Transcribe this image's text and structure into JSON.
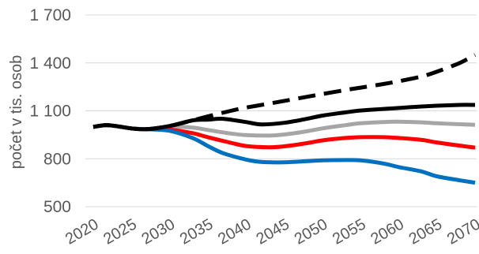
{
  "chart_data": {
    "type": "line",
    "title": "",
    "xlabel": "",
    "ylabel": "počet v tis. osob",
    "ylim": [
      500,
      1700
    ],
    "yticks": [
      500,
      800,
      1100,
      1400,
      1700
    ],
    "ytick_labels": [
      "500",
      "800",
      "1 100",
      "1 400",
      "1 700"
    ],
    "xlim": [
      2020,
      2070
    ],
    "xticks": [
      2020,
      2025,
      2030,
      2035,
      2040,
      2045,
      2050,
      2055,
      2060,
      2065,
      2070
    ],
    "xtick_labels": [
      "2020",
      "2025",
      "2030",
      "2035",
      "2040",
      "2045",
      "2050",
      "2055",
      "2060",
      "2065",
      "2070"
    ],
    "grid": "horizontal",
    "legend": "none",
    "series": [
      {
        "color": "#000000",
        "style": "dashed",
        "x": [
          2020,
          2022,
          2025,
          2027,
          2030,
          2033,
          2035,
          2038,
          2040,
          2043,
          2045,
          2048,
          2050,
          2053,
          2055,
          2058,
          2060,
          2063,
          2065,
          2068,
          2070
        ],
        "y": [
          1000,
          1010,
          990,
          985,
          1005,
          1040,
          1065,
          1100,
          1120,
          1145,
          1162,
          1188,
          1205,
          1230,
          1245,
          1268,
          1285,
          1315,
          1345,
          1400,
          1450
        ]
      },
      {
        "color": "#000000",
        "style": "solid",
        "x": [
          2020,
          2022,
          2025,
          2027,
          2030,
          2033,
          2035,
          2037,
          2040,
          2042,
          2045,
          2048,
          2050,
          2053,
          2055,
          2058,
          2060,
          2063,
          2065,
          2068,
          2070
        ],
        "y": [
          1000,
          1010,
          990,
          985,
          1005,
          1040,
          1045,
          1050,
          1030,
          1015,
          1025,
          1050,
          1070,
          1090,
          1102,
          1112,
          1118,
          1127,
          1132,
          1137,
          1137
        ]
      },
      {
        "color": "#A6A6A6",
        "style": "solid",
        "x": [
          2020,
          2022,
          2025,
          2027,
          2030,
          2033,
          2035,
          2038,
          2040,
          2043,
          2045,
          2048,
          2050,
          2053,
          2055,
          2058,
          2060,
          2063,
          2065,
          2068,
          2070
        ],
        "y": [
          1000,
          1010,
          990,
          985,
          1000,
          995,
          980,
          958,
          948,
          945,
          952,
          972,
          990,
          1010,
          1022,
          1030,
          1032,
          1028,
          1022,
          1016,
          1012
        ]
      },
      {
        "color": "#FF0000",
        "style": "solid",
        "x": [
          2020,
          2022,
          2025,
          2027,
          2030,
          2033,
          2035,
          2038,
          2040,
          2043,
          2045,
          2048,
          2050,
          2053,
          2055,
          2058,
          2060,
          2063,
          2065,
          2068,
          2070
        ],
        "y": [
          1000,
          1010,
          990,
          985,
          982,
          960,
          935,
          900,
          880,
          872,
          878,
          898,
          915,
          930,
          935,
          935,
          930,
          918,
          902,
          882,
          870
        ]
      },
      {
        "color": "#0070C0",
        "style": "solid",
        "x": [
          2020,
          2022,
          2025,
          2027,
          2030,
          2033,
          2035,
          2037,
          2040,
          2042,
          2045,
          2048,
          2050,
          2053,
          2055,
          2058,
          2060,
          2063,
          2065,
          2068,
          2070
        ],
        "y": [
          1000,
          1010,
          990,
          985,
          975,
          930,
          880,
          835,
          795,
          780,
          778,
          785,
          790,
          792,
          790,
          770,
          748,
          720,
          690,
          665,
          650
        ]
      }
    ]
  }
}
